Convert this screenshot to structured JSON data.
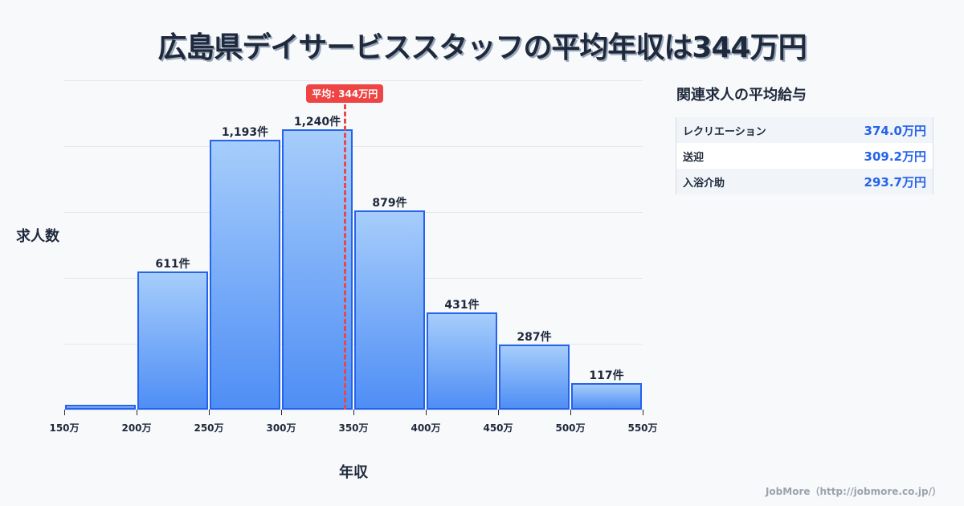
{
  "title": "広島県デイサービススタッフの平均年収は344万円",
  "chart_data": {
    "type": "bar",
    "title": "広島県デイサービススタッフの平均年収は344万円",
    "xlabel": "年収",
    "ylabel": "求人数",
    "categories": [
      "150-200万",
      "200-250万",
      "250-300万",
      "300-350万",
      "350-400万",
      "400-450万",
      "450-500万",
      "500-550万"
    ],
    "bin_edges": [
      150,
      200,
      250,
      300,
      350,
      400,
      450,
      500,
      550
    ],
    "tick_labels": [
      "150万",
      "200万",
      "250万",
      "300万",
      "350万",
      "400万",
      "450万",
      "500万",
      "550万"
    ],
    "values": [
      18,
      611,
      1193,
      1240,
      879,
      431,
      287,
      117
    ],
    "value_labels": [
      "",
      "611件",
      "1,193件",
      "1,240件",
      "879件",
      "431件",
      "287件",
      "117件"
    ],
    "ylim": [
      0,
      1456
    ],
    "grid": true,
    "mean": 344,
    "mean_label": "平均: 344万円"
  },
  "axes": {
    "ylabel": "求人数",
    "xlabel": "年収"
  },
  "sidebar": {
    "title": "関連求人の平均給与",
    "rows": [
      {
        "name": "レクリエーション",
        "value": "374.0万円"
      },
      {
        "name": "送迎",
        "value": "309.2万円"
      },
      {
        "name": "入浴介助",
        "value": "293.7万円"
      }
    ]
  },
  "footer": "JobMore（http://jobmore.co.jp/）",
  "colors": {
    "bar_border": "#2563eb",
    "bar_top": "#a6cdfb",
    "bar_bottom": "#4f8ef5",
    "mean_line": "#e5484d",
    "accent_value": "#2563eb",
    "title": "#1e293b"
  }
}
